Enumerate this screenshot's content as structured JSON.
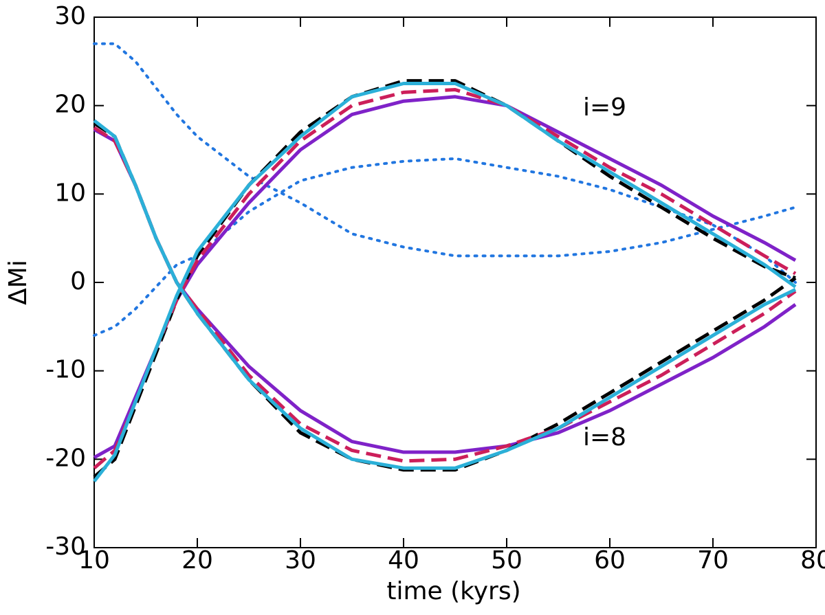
{
  "chart_data": {
    "type": "line",
    "x_label": "time (kyrs)",
    "y_label": "ΔMi",
    "annotations": [
      "i=9",
      "i=8"
    ],
    "x": [
      10,
      12,
      14,
      16,
      18,
      20,
      25,
      30,
      35,
      40,
      45,
      50,
      55,
      60,
      65,
      70,
      75,
      78
    ],
    "xlim": [
      10,
      80
    ],
    "xticks": [
      10,
      20,
      30,
      40,
      50,
      60,
      70,
      80
    ],
    "ylim": [
      -30,
      30
    ],
    "yticks": [
      -30,
      -20,
      -10,
      0,
      10,
      20,
      30
    ],
    "grid": false,
    "series": [
      {
        "color": "#2176e0",
        "style": "dotted",
        "values": [
          27,
          27,
          25,
          22,
          19,
          16.5,
          12,
          9,
          5.5,
          4,
          3,
          3,
          3,
          3.5,
          4.5,
          6,
          7.5,
          8.5
        ]
      },
      {
        "color": "#2176e0",
        "style": "dotted",
        "values": [
          -6,
          -5,
          -3,
          -0.5,
          2,
          3,
          8,
          11.5,
          13,
          13.7,
          14,
          13,
          12,
          10.5,
          8.5,
          6.5,
          3,
          0
        ]
      },
      {
        "color": "#7f22c8",
        "style": "solid",
        "values": [
          -19.8,
          -18.5,
          -13,
          -7.5,
          -2,
          2,
          9,
          15,
          19,
          20.5,
          21,
          20,
          17,
          14,
          11,
          7.5,
          4.5,
          2.5
        ]
      },
      {
        "color": "#7f22c8",
        "style": "solid",
        "values": [
          17.3,
          16,
          11,
          5,
          0,
          -3,
          -9.5,
          -14.5,
          -18,
          -19.2,
          -19.2,
          -18.5,
          -17,
          -14.5,
          -11.5,
          -8.5,
          -5,
          -2.5
        ]
      },
      {
        "color": "#000000",
        "style": "dashed",
        "values": [
          -22,
          -20,
          -14,
          -8,
          -2,
          3,
          11,
          17,
          21,
          22.8,
          22.8,
          20,
          16,
          12,
          8.5,
          5,
          1.8,
          0.5
        ]
      },
      {
        "color": "#000000",
        "style": "dashed",
        "values": [
          18,
          16.5,
          11,
          5,
          0,
          -3.5,
          -11,
          -17,
          -20,
          -21.2,
          -21.2,
          -19,
          -16,
          -12.5,
          -9,
          -5.5,
          -2,
          0.5
        ]
      },
      {
        "color": "#cc1f5a",
        "style": "dashed",
        "values": [
          -21,
          -19,
          -13.5,
          -7.5,
          -2,
          2.5,
          10,
          16,
          20,
          21.5,
          21.8,
          20,
          16.5,
          13,
          10,
          6.5,
          3,
          1
        ]
      },
      {
        "color": "#cc1f5a",
        "style": "dashed",
        "values": [
          17.5,
          16,
          11,
          5,
          0,
          -3,
          -10.5,
          -16,
          -19,
          -20.2,
          -20,
          -18.5,
          -16.5,
          -13.5,
          -10.5,
          -7,
          -3.5,
          -1
        ]
      },
      {
        "color": "#2bb0d8",
        "style": "solid",
        "values": [
          -22.5,
          -19.5,
          -13.5,
          -7.5,
          -1.5,
          3.5,
          11,
          16.5,
          21,
          22.5,
          22.5,
          20,
          16,
          12.5,
          9,
          5.5,
          2,
          -0.5
        ]
      },
      {
        "color": "#2bb0d8",
        "style": "solid",
        "values": [
          18.3,
          16.5,
          11,
          5,
          0,
          -3.5,
          -11,
          -16.5,
          -20,
          -21,
          -21,
          -19,
          -16.5,
          -13,
          -9.5,
          -6,
          -2.5,
          -0.8
        ]
      }
    ]
  }
}
